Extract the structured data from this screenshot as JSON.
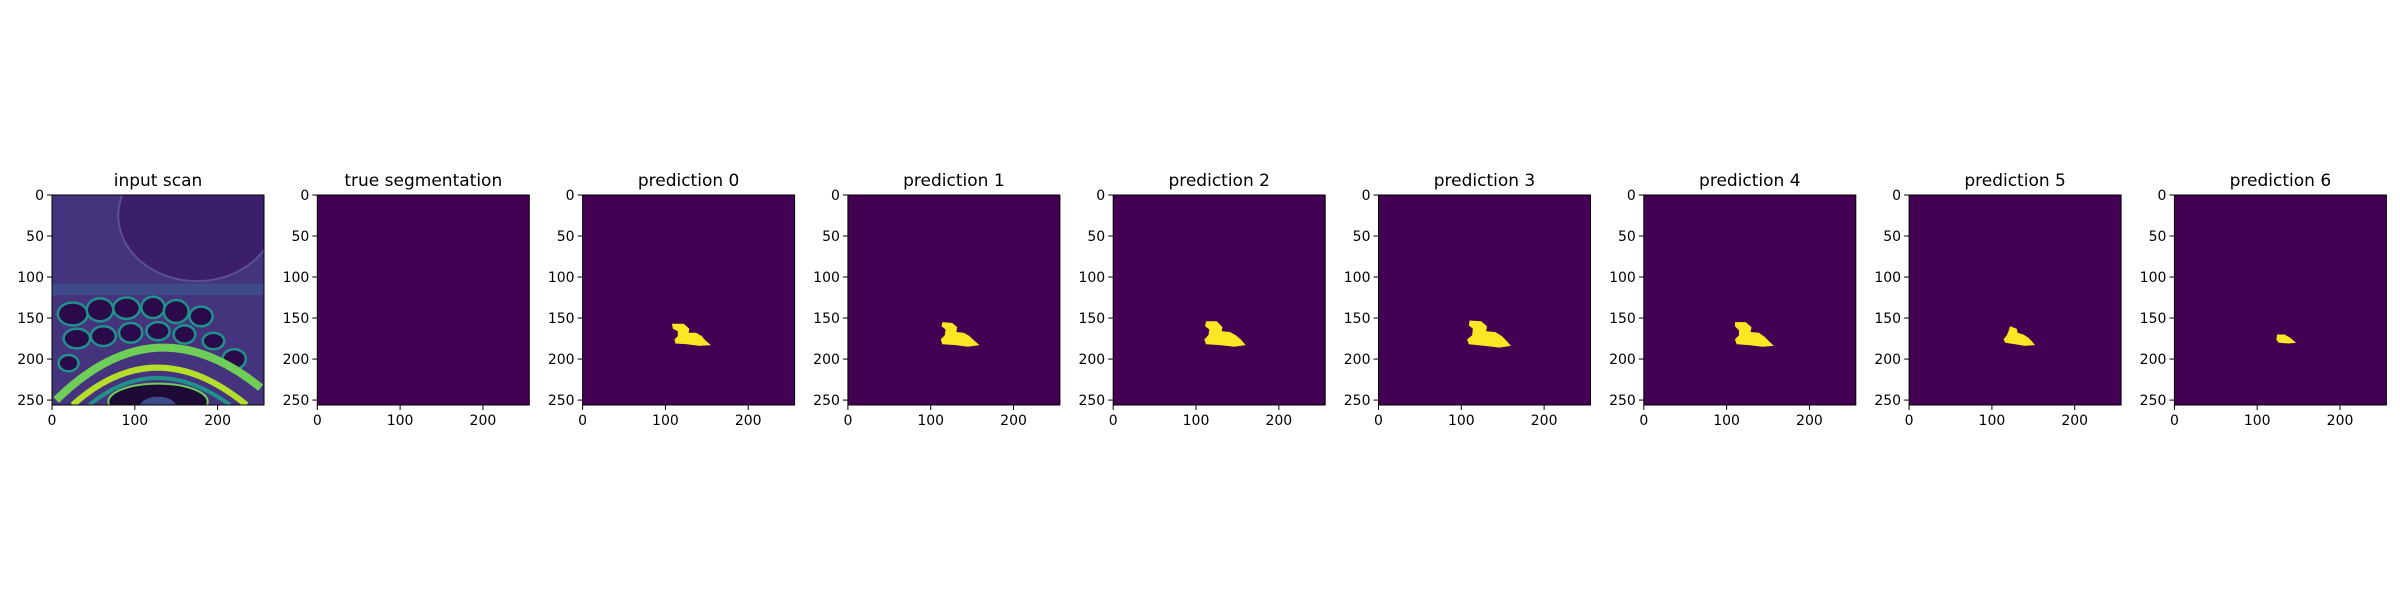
{
  "chart_data": [
    {
      "type": "heatmap",
      "title": "input scan",
      "x_ticks": [
        0,
        100,
        200
      ],
      "y_ticks": [
        0,
        50,
        100,
        150,
        200,
        250
      ],
      "xlim": [
        0,
        256
      ],
      "ylim": [
        256,
        0
      ],
      "colormap": "viridis",
      "content": "mri-scan"
    },
    {
      "type": "heatmap",
      "title": "true segmentation",
      "x_ticks": [
        0,
        100,
        200
      ],
      "y_ticks": [
        0,
        50,
        100,
        150,
        200,
        250
      ],
      "xlim": [
        0,
        256
      ],
      "ylim": [
        256,
        0
      ],
      "colormap": "viridis",
      "mask": []
    },
    {
      "type": "heatmap",
      "title": "prediction 0",
      "x_ticks": [
        0,
        100,
        200
      ],
      "y_ticks": [
        0,
        50,
        100,
        150,
        200,
        250
      ],
      "xlim": [
        0,
        256
      ],
      "ylim": [
        256,
        0
      ],
      "colormap": "viridis",
      "mask": [
        [
          108,
          157
        ],
        [
          122,
          157
        ],
        [
          129,
          163
        ],
        [
          128,
          168
        ],
        [
          137,
          168
        ],
        [
          144,
          172
        ],
        [
          148,
          177
        ],
        [
          155,
          183
        ],
        [
          141,
          184
        ],
        [
          126,
          182
        ],
        [
          112,
          181
        ],
        [
          111,
          176
        ],
        [
          115,
          172
        ],
        [
          115,
          166
        ],
        [
          109,
          163
        ]
      ]
    },
    {
      "type": "heatmap",
      "title": "prediction 1",
      "x_ticks": [
        0,
        100,
        200
      ],
      "y_ticks": [
        0,
        50,
        100,
        150,
        200,
        250
      ],
      "xlim": [
        0,
        256
      ],
      "ylim": [
        256,
        0
      ],
      "colormap": "viridis",
      "mask": [
        [
          114,
          155
        ],
        [
          126,
          156
        ],
        [
          132,
          161
        ],
        [
          131,
          167
        ],
        [
          140,
          168
        ],
        [
          147,
          172
        ],
        [
          152,
          177
        ],
        [
          159,
          183
        ],
        [
          145,
          185
        ],
        [
          130,
          183
        ],
        [
          114,
          182
        ],
        [
          112,
          176
        ],
        [
          117,
          171
        ],
        [
          118,
          164
        ],
        [
          113,
          160
        ]
      ]
    },
    {
      "type": "heatmap",
      "title": "prediction 2",
      "x_ticks": [
        0,
        100,
        200
      ],
      "y_ticks": [
        0,
        50,
        100,
        150,
        200,
        250
      ],
      "xlim": [
        0,
        256
      ],
      "ylim": [
        256,
        0
      ],
      "colormap": "viridis",
      "mask": [
        [
          112,
          154
        ],
        [
          125,
          154
        ],
        [
          132,
          161
        ],
        [
          131,
          166
        ],
        [
          141,
          167
        ],
        [
          148,
          171
        ],
        [
          154,
          176
        ],
        [
          160,
          183
        ],
        [
          146,
          185
        ],
        [
          129,
          183
        ],
        [
          112,
          182
        ],
        [
          110,
          176
        ],
        [
          115,
          171
        ],
        [
          116,
          164
        ],
        [
          111,
          160
        ]
      ]
    },
    {
      "type": "heatmap",
      "title": "prediction 3",
      "x_ticks": [
        0,
        100,
        200
      ],
      "y_ticks": [
        0,
        50,
        100,
        150,
        200,
        250
      ],
      "xlim": [
        0,
        256
      ],
      "ylim": [
        256,
        0
      ],
      "colormap": "viridis",
      "mask": [
        [
          110,
          153
        ],
        [
          124,
          154
        ],
        [
          131,
          160
        ],
        [
          130,
          166
        ],
        [
          141,
          167
        ],
        [
          149,
          172
        ],
        [
          154,
          177
        ],
        [
          160,
          184
        ],
        [
          146,
          186
        ],
        [
          128,
          184
        ],
        [
          109,
          182
        ],
        [
          107,
          176
        ],
        [
          113,
          171
        ],
        [
          114,
          163
        ],
        [
          109,
          159
        ]
      ]
    },
    {
      "type": "heatmap",
      "title": "prediction 4",
      "x_ticks": [
        0,
        100,
        200
      ],
      "y_ticks": [
        0,
        50,
        100,
        150,
        200,
        250
      ],
      "xlim": [
        0,
        256
      ],
      "ylim": [
        256,
        0
      ],
      "colormap": "viridis",
      "mask": [
        [
          110,
          155
        ],
        [
          123,
          155
        ],
        [
          130,
          161
        ],
        [
          129,
          167
        ],
        [
          139,
          168
        ],
        [
          146,
          173
        ],
        [
          151,
          178
        ],
        [
          157,
          184
        ],
        [
          143,
          185
        ],
        [
          127,
          183
        ],
        [
          112,
          182
        ],
        [
          110,
          176
        ],
        [
          115,
          171
        ],
        [
          115,
          165
        ],
        [
          110,
          160
        ]
      ]
    },
    {
      "type": "heatmap",
      "title": "prediction 5",
      "x_ticks": [
        0,
        100,
        200
      ],
      "y_ticks": [
        0,
        50,
        100,
        150,
        200,
        250
      ],
      "xlim": [
        0,
        256
      ],
      "ylim": [
        256,
        0
      ],
      "colormap": "viridis",
      "mask": [
        [
          122,
          160
        ],
        [
          130,
          163
        ],
        [
          131,
          168
        ],
        [
          138,
          170
        ],
        [
          144,
          174
        ],
        [
          148,
          178
        ],
        [
          152,
          183
        ],
        [
          140,
          184
        ],
        [
          128,
          182
        ],
        [
          116,
          180
        ],
        [
          114,
          176
        ],
        [
          118,
          171
        ],
        [
          120,
          166
        ]
      ]
    },
    {
      "type": "heatmap",
      "title": "prediction 6",
      "x_ticks": [
        0,
        100,
        200
      ],
      "y_ticks": [
        0,
        50,
        100,
        150,
        200,
        250
      ],
      "xlim": [
        0,
        256
      ],
      "ylim": [
        256,
        0
      ],
      "colormap": "viridis",
      "mask": [
        [
          124,
          170
        ],
        [
          133,
          170
        ],
        [
          140,
          174
        ],
        [
          147,
          180
        ],
        [
          138,
          181
        ],
        [
          126,
          180
        ],
        [
          123,
          176
        ]
      ]
    }
  ],
  "colors": {
    "background": "#440154",
    "mask": "#fde725",
    "scan_dark": "#46337e",
    "scan_mid": "#21918c",
    "scan_bright": "#6ece58",
    "scan_max": "#b5de2b"
  }
}
